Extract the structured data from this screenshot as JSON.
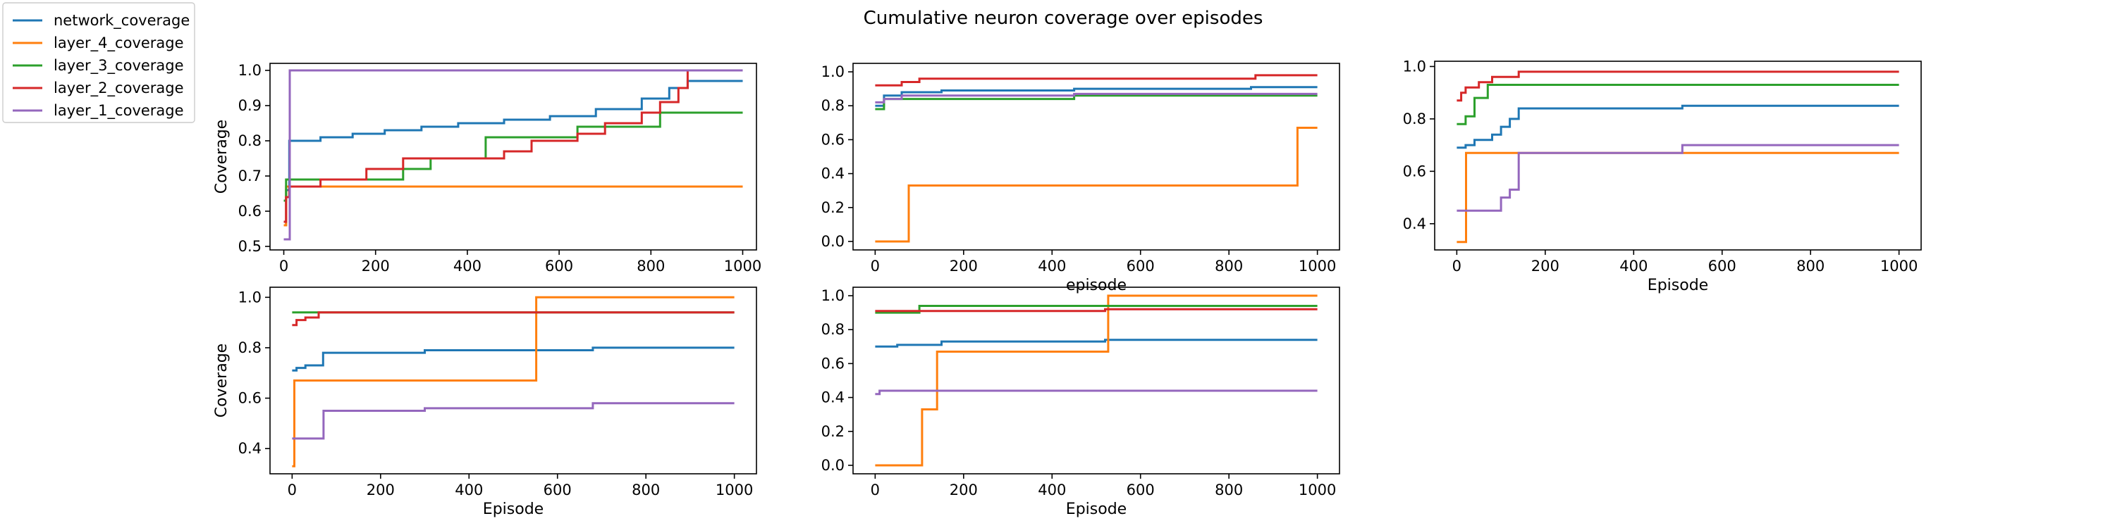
{
  "figure": {
    "title": "Cumulative neuron coverage over episodes"
  },
  "colors": {
    "network_coverage": "#1f77b4",
    "layer_4_coverage": "#ff7f0e",
    "layer_3_coverage": "#2ca02c",
    "layer_2_coverage": "#d62728",
    "layer_1_coverage": "#9467bd"
  },
  "legend": {
    "placement": "top-left",
    "entries": [
      "network_coverage",
      "layer_4_coverage",
      "layer_3_coverage",
      "layer_2_coverage",
      "layer_1_coverage"
    ]
  },
  "chart_data": [
    {
      "type": "line",
      "step": true,
      "xlabel": "",
      "ylabel": "Coverage",
      "xlim": [
        -30,
        1030
      ],
      "ylim": [
        0.49,
        1.02
      ],
      "xticks": [
        0,
        200,
        400,
        600,
        800,
        1000
      ],
      "yticks": [
        0.5,
        0.6,
        0.7,
        0.8,
        0.9,
        1.0
      ],
      "ytick_labels": [
        "0.5",
        "0.6",
        "0.7",
        "0.8",
        "0.9",
        "1.0"
      ],
      "series": [
        {
          "name": "network_coverage",
          "points": [
            [
              0,
              0.56
            ],
            [
              5,
              0.66
            ],
            [
              12,
              0.8
            ],
            [
              80,
              0.81
            ],
            [
              150,
              0.82
            ],
            [
              220,
              0.83
            ],
            [
              300,
              0.84
            ],
            [
              380,
              0.85
            ],
            [
              480,
              0.86
            ],
            [
              580,
              0.87
            ],
            [
              680,
              0.89
            ],
            [
              780,
              0.92
            ],
            [
              840,
              0.95
            ],
            [
              880,
              0.97
            ],
            [
              1000,
              0.97
            ]
          ]
        },
        {
          "name": "layer_4_coverage",
          "points": [
            [
              0,
              0.56
            ],
            [
              5,
              0.67
            ],
            [
              1000,
              0.67
            ]
          ]
        },
        {
          "name": "layer_3_coverage",
          "points": [
            [
              0,
              0.63
            ],
            [
              5,
              0.69
            ],
            [
              160,
              0.69
            ],
            [
              260,
              0.72
            ],
            [
              320,
              0.75
            ],
            [
              440,
              0.81
            ],
            [
              580,
              0.81
            ],
            [
              640,
              0.84
            ],
            [
              760,
              0.84
            ],
            [
              820,
              0.88
            ],
            [
              1000,
              0.88
            ]
          ]
        },
        {
          "name": "layer_2_coverage",
          "points": [
            [
              0,
              0.57
            ],
            [
              5,
              0.64
            ],
            [
              12,
              0.67
            ],
            [
              80,
              0.69
            ],
            [
              180,
              0.72
            ],
            [
              260,
              0.75
            ],
            [
              480,
              0.77
            ],
            [
              540,
              0.8
            ],
            [
              640,
              0.82
            ],
            [
              700,
              0.85
            ],
            [
              780,
              0.88
            ],
            [
              820,
              0.91
            ],
            [
              860,
              0.95
            ],
            [
              880,
              1.0
            ],
            [
              1000,
              1.0
            ]
          ]
        },
        {
          "name": "layer_1_coverage",
          "points": [
            [
              0,
              0.52
            ],
            [
              12,
              0.52
            ],
            [
              13,
              1.0
            ],
            [
              1000,
              1.0
            ]
          ]
        }
      ]
    },
    {
      "type": "line",
      "step": true,
      "xlabel": "episode",
      "ylabel": "",
      "xlim": [
        -50,
        1050
      ],
      "ylim": [
        -0.05,
        1.05
      ],
      "xticks": [
        0,
        200,
        400,
        600,
        800,
        1000
      ],
      "yticks": [
        0.0,
        0.2,
        0.4,
        0.6,
        0.8,
        1.0
      ],
      "ytick_labels": [
        "0.0",
        "0.2",
        "0.4",
        "0.6",
        "0.8",
        "1.0"
      ],
      "series": [
        {
          "name": "network_coverage",
          "points": [
            [
              0,
              0.8
            ],
            [
              20,
              0.86
            ],
            [
              60,
              0.88
            ],
            [
              150,
              0.89
            ],
            [
              450,
              0.9
            ],
            [
              850,
              0.91
            ],
            [
              1000,
              0.91
            ]
          ]
        },
        {
          "name": "layer_4_coverage",
          "points": [
            [
              0,
              0.0
            ],
            [
              75,
              0.0
            ],
            [
              76,
              0.33
            ],
            [
              950,
              0.33
            ],
            [
              955,
              0.67
            ],
            [
              1000,
              0.67
            ]
          ]
        },
        {
          "name": "layer_3_coverage",
          "points": [
            [
              0,
              0.78
            ],
            [
              20,
              0.84
            ],
            [
              450,
              0.86
            ],
            [
              1000,
              0.86
            ]
          ]
        },
        {
          "name": "layer_2_coverage",
          "points": [
            [
              0,
              0.92
            ],
            [
              60,
              0.94
            ],
            [
              100,
              0.96
            ],
            [
              860,
              0.98
            ],
            [
              1000,
              0.98
            ]
          ]
        },
        {
          "name": "layer_1_coverage",
          "points": [
            [
              0,
              0.82
            ],
            [
              20,
              0.84
            ],
            [
              60,
              0.86
            ],
            [
              450,
              0.87
            ],
            [
              1000,
              0.87
            ]
          ]
        }
      ]
    },
    {
      "type": "line",
      "step": true,
      "xlabel": "Episode",
      "ylabel": "",
      "xlim": [
        -50,
        1050
      ],
      "ylim": [
        0.3,
        1.02
      ],
      "xticks": [
        0,
        200,
        400,
        600,
        800,
        1000
      ],
      "yticks": [
        0.4,
        0.6,
        0.8,
        1.0
      ],
      "ytick_labels": [
        "0.4",
        "0.6",
        "0.8",
        "1.0"
      ],
      "series": [
        {
          "name": "network_coverage",
          "points": [
            [
              0,
              0.69
            ],
            [
              20,
              0.7
            ],
            [
              40,
              0.72
            ],
            [
              80,
              0.74
            ],
            [
              100,
              0.77
            ],
            [
              120,
              0.8
            ],
            [
              140,
              0.84
            ],
            [
              510,
              0.85
            ],
            [
              1000,
              0.85
            ]
          ]
        },
        {
          "name": "layer_4_coverage",
          "points": [
            [
              0,
              0.33
            ],
            [
              20,
              0.33
            ],
            [
              21,
              0.67
            ],
            [
              1000,
              0.67
            ]
          ]
        },
        {
          "name": "layer_3_coverage",
          "points": [
            [
              0,
              0.78
            ],
            [
              20,
              0.81
            ],
            [
              40,
              0.88
            ],
            [
              70,
              0.93
            ],
            [
              1000,
              0.93
            ]
          ]
        },
        {
          "name": "layer_2_coverage",
          "points": [
            [
              0,
              0.87
            ],
            [
              10,
              0.9
            ],
            [
              20,
              0.92
            ],
            [
              50,
              0.94
            ],
            [
              80,
              0.96
            ],
            [
              140,
              0.98
            ],
            [
              1000,
              0.98
            ]
          ]
        },
        {
          "name": "layer_1_coverage",
          "points": [
            [
              0,
              0.45
            ],
            [
              90,
              0.45
            ],
            [
              100,
              0.5
            ],
            [
              120,
              0.53
            ],
            [
              140,
              0.67
            ],
            [
              510,
              0.7
            ],
            [
              1000,
              0.7
            ]
          ]
        }
      ]
    },
    {
      "type": "line",
      "step": true,
      "xlabel": "Episode",
      "ylabel": "Coverage",
      "xlim": [
        -50,
        1050
      ],
      "ylim": [
        0.3,
        1.04
      ],
      "xticks": [
        0,
        200,
        400,
        600,
        800,
        1000
      ],
      "yticks": [
        0.4,
        0.6,
        0.8,
        1.0
      ],
      "ytick_labels": [
        "0.4",
        "0.6",
        "0.8",
        "1.0"
      ],
      "series": [
        {
          "name": "network_coverage",
          "points": [
            [
              0,
              0.71
            ],
            [
              10,
              0.72
            ],
            [
              30,
              0.73
            ],
            [
              70,
              0.78
            ],
            [
              300,
              0.79
            ],
            [
              680,
              0.8
            ],
            [
              1000,
              0.8
            ]
          ]
        },
        {
          "name": "layer_4_coverage",
          "points": [
            [
              0,
              0.33
            ],
            [
              5,
              0.67
            ],
            [
              550,
              0.67
            ],
            [
              552,
              1.0
            ],
            [
              1000,
              1.0
            ]
          ]
        },
        {
          "name": "layer_3_coverage",
          "points": [
            [
              0,
              0.94
            ],
            [
              1000,
              0.94
            ]
          ]
        },
        {
          "name": "layer_2_coverage",
          "points": [
            [
              0,
              0.89
            ],
            [
              10,
              0.91
            ],
            [
              30,
              0.92
            ],
            [
              60,
              0.94
            ],
            [
              1000,
              0.94
            ]
          ]
        },
        {
          "name": "layer_1_coverage",
          "points": [
            [
              0,
              0.44
            ],
            [
              70,
              0.44
            ],
            [
              71,
              0.55
            ],
            [
              300,
              0.56
            ],
            [
              680,
              0.58
            ],
            [
              1000,
              0.58
            ]
          ]
        }
      ]
    },
    {
      "type": "line",
      "step": true,
      "xlabel": "Episode",
      "ylabel": "",
      "xlim": [
        -50,
        1050
      ],
      "ylim": [
        -0.05,
        1.05
      ],
      "xticks": [
        0,
        200,
        400,
        600,
        800,
        1000
      ],
      "yticks": [
        0.0,
        0.2,
        0.4,
        0.6,
        0.8,
        1.0
      ],
      "ytick_labels": [
        "0.0",
        "0.2",
        "0.4",
        "0.6",
        "0.8",
        "1.0"
      ],
      "series": [
        {
          "name": "network_coverage",
          "points": [
            [
              0,
              0.7
            ],
            [
              50,
              0.71
            ],
            [
              150,
              0.73
            ],
            [
              520,
              0.74
            ],
            [
              1000,
              0.74
            ]
          ]
        },
        {
          "name": "layer_4_coverage",
          "points": [
            [
              0,
              0.0
            ],
            [
              105,
              0.0
            ],
            [
              106,
              0.33
            ],
            [
              140,
              0.67
            ],
            [
              525,
              0.67
            ],
            [
              527,
              1.0
            ],
            [
              1000,
              1.0
            ]
          ]
        },
        {
          "name": "layer_3_coverage",
          "points": [
            [
              0,
              0.9
            ],
            [
              100,
              0.94
            ],
            [
              1000,
              0.94
            ]
          ]
        },
        {
          "name": "layer_2_coverage",
          "points": [
            [
              0,
              0.91
            ],
            [
              520,
              0.92
            ],
            [
              1000,
              0.92
            ]
          ]
        },
        {
          "name": "layer_1_coverage",
          "points": [
            [
              0,
              0.42
            ],
            [
              10,
              0.44
            ],
            [
              1000,
              0.44
            ]
          ]
        }
      ]
    }
  ]
}
